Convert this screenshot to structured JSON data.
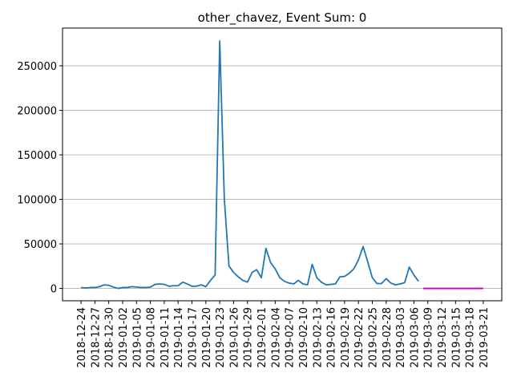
{
  "chart_data": {
    "type": "line",
    "title": "other_chavez, Event Sum: 0",
    "series": [
      {
        "color": "#1f77b4",
        "x": [
          "2018-12-24",
          "2018-12-25",
          "2018-12-26",
          "2018-12-27",
          "2018-12-28",
          "2018-12-29",
          "2018-12-30",
          "2018-12-31",
          "2019-01-01",
          "2019-01-02",
          "2019-01-03",
          "2019-01-04",
          "2019-01-05",
          "2019-01-06",
          "2019-01-07",
          "2019-01-08",
          "2019-01-09",
          "2019-01-10",
          "2019-01-11",
          "2019-01-12",
          "2019-01-13",
          "2019-01-14",
          "2019-01-15",
          "2019-01-16",
          "2019-01-17",
          "2019-01-18",
          "2019-01-19",
          "2019-01-20",
          "2019-01-21",
          "2019-01-22",
          "2019-01-23",
          "2019-01-24",
          "2019-01-25",
          "2019-01-26",
          "2019-01-27",
          "2019-01-28",
          "2019-01-29",
          "2019-01-30",
          "2019-01-31",
          "2019-02-01",
          "2019-02-02",
          "2019-02-03",
          "2019-02-04",
          "2019-02-05",
          "2019-02-06",
          "2019-02-07",
          "2019-02-08",
          "2019-02-09",
          "2019-02-10",
          "2019-02-11",
          "2019-02-12",
          "2019-02-13",
          "2019-02-14",
          "2019-02-15",
          "2019-02-16",
          "2019-02-17",
          "2019-02-18",
          "2019-02-19",
          "2019-02-20",
          "2019-02-21",
          "2019-02-22",
          "2019-02-23",
          "2019-02-24",
          "2019-02-25",
          "2019-02-26",
          "2019-02-27",
          "2019-02-28",
          "2019-03-01",
          "2019-03-02",
          "2019-03-03",
          "2019-03-04",
          "2019-03-05",
          "2019-03-06",
          "2019-03-07"
        ],
        "values": [
          1000,
          500,
          1000,
          1000,
          2000,
          4000,
          3500,
          1500,
          0,
          1000,
          1000,
          2000,
          1500,
          1000,
          1000,
          1500,
          4500,
          5000,
          4500,
          2500,
          3000,
          3000,
          7000,
          5000,
          2500,
          2500,
          4000,
          2000,
          9000,
          15000,
          278000,
          100000,
          25000,
          18000,
          13000,
          9000,
          7000,
          18000,
          21000,
          12000,
          45000,
          29000,
          22000,
          12000,
          8000,
          6000,
          5000,
          9000,
          5000,
          4000,
          27000,
          12000,
          7000,
          4000,
          4500,
          5000,
          13000,
          13500,
          17000,
          22000,
          32000,
          47000,
          30000,
          12000,
          5500,
          5500,
          11000,
          6000,
          4000,
          5000,
          6500,
          24000,
          15000,
          8000
        ]
      },
      {
        "color": "#bf00bf",
        "x": [
          "2019-03-08",
          "2019-03-09",
          "2019-03-10",
          "2019-03-11",
          "2019-03-12",
          "2019-03-13",
          "2019-03-14",
          "2019-03-15",
          "2019-03-16",
          "2019-03-17",
          "2019-03-18",
          "2019-03-19",
          "2019-03-20",
          "2019-03-21"
        ],
        "values": [
          0,
          0,
          0,
          0,
          0,
          0,
          0,
          0,
          0,
          0,
          0,
          0,
          0,
          0
        ]
      }
    ],
    "xlim": [
      "2018-12-20",
      "2019-03-25"
    ],
    "xticks": [
      "2018-12-24",
      "2018-12-27",
      "2018-12-30",
      "2019-01-02",
      "2019-01-05",
      "2019-01-08",
      "2019-01-11",
      "2019-01-14",
      "2019-01-17",
      "2019-01-20",
      "2019-01-23",
      "2019-01-26",
      "2019-01-29",
      "2019-02-01",
      "2019-02-04",
      "2019-02-07",
      "2019-02-10",
      "2019-02-13",
      "2019-02-16",
      "2019-02-19",
      "2019-02-22",
      "2019-02-25",
      "2019-02-28",
      "2019-03-03",
      "2019-03-06",
      "2019-03-09",
      "2019-03-12",
      "2019-03-15",
      "2019-03-18",
      "2019-03-21"
    ],
    "ylim": [
      -13900,
      292400
    ],
    "yticks": [
      0,
      50000,
      100000,
      150000,
      200000,
      250000
    ],
    "grid": "y"
  }
}
